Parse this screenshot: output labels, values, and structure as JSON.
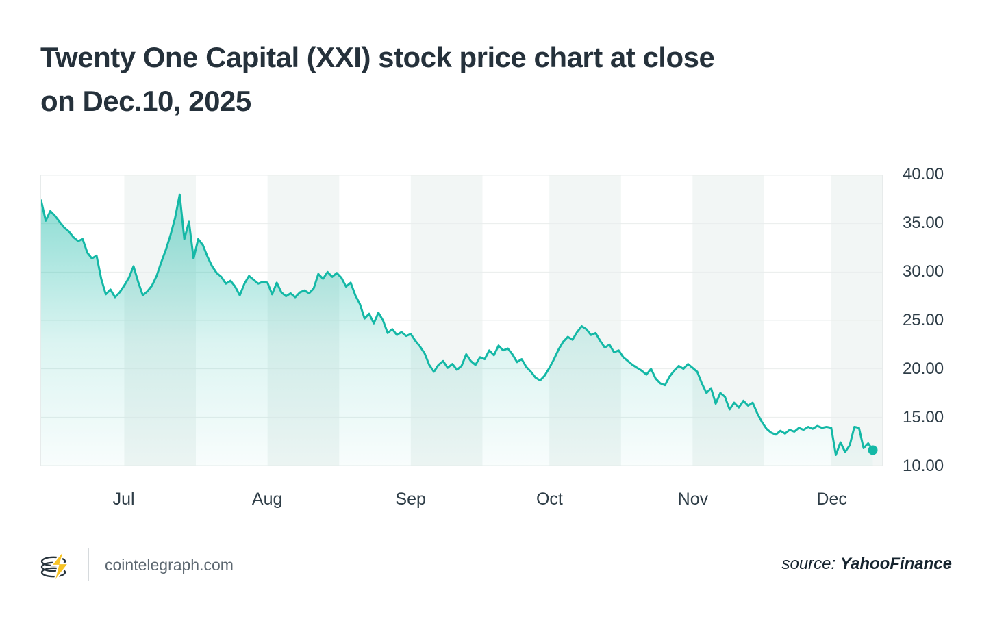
{
  "page": {
    "title_line1": "Twenty One Capital (XXI) stock price chart at close",
    "title_line2": "on Dec.10, 2025"
  },
  "footer": {
    "site": "cointelegraph.com",
    "source_label": "source:",
    "source_name": "YahooFinance",
    "logo_icon": "cointelegraph-coin-lightning-logo"
  },
  "chart_data": {
    "type": "area",
    "title": "Twenty One Capital (XXI) stock price at close on Dec. 10, 2025",
    "xlabel": "",
    "ylabel": "",
    "ylim": [
      10,
      40
    ],
    "y_ticks": [
      10,
      15,
      20,
      25,
      30,
      35,
      40
    ],
    "y_tick_labels": [
      "10.00",
      "15.00",
      "20.00",
      "25.00",
      "30.00",
      "35.00",
      "40.00"
    ],
    "x_months": [
      {
        "label": "Jul",
        "day": 18
      },
      {
        "label": "Aug",
        "day": 49
      },
      {
        "label": "Sep",
        "day": 80
      },
      {
        "label": "Oct",
        "day": 110
      },
      {
        "label": "Nov",
        "day": 141
      },
      {
        "label": "Dec",
        "day": 171
      }
    ],
    "domain_days": 182,
    "stripe_days": 15.5,
    "grid": true,
    "legend": "none",
    "line_color": "#14b8a6",
    "fill_color": "#14b8a6",
    "stripe_color": "#f2f6f5",
    "grid_color": "#e9edec",
    "last_point_marker": true,
    "last_close": 11.6,
    "points": [
      [
        0,
        37.4
      ],
      [
        1,
        35.3
      ],
      [
        2,
        36.3
      ],
      [
        3,
        35.8
      ],
      [
        4,
        35.2
      ],
      [
        5,
        34.6
      ],
      [
        6,
        34.2
      ],
      [
        7,
        33.6
      ],
      [
        8,
        33.2
      ],
      [
        9,
        33.4
      ],
      [
        10,
        32.0
      ],
      [
        11,
        31.4
      ],
      [
        12,
        31.7
      ],
      [
        13,
        29.3
      ],
      [
        14,
        27.7
      ],
      [
        15,
        28.2
      ],
      [
        16,
        27.4
      ],
      [
        17,
        27.9
      ],
      [
        18,
        28.6
      ],
      [
        19,
        29.4
      ],
      [
        20,
        30.6
      ],
      [
        21,
        29.0
      ],
      [
        22,
        27.6
      ],
      [
        23,
        28.0
      ],
      [
        24,
        28.6
      ],
      [
        25,
        29.6
      ],
      [
        26,
        31.0
      ],
      [
        27,
        32.3
      ],
      [
        28,
        33.8
      ],
      [
        29,
        35.6
      ],
      [
        30,
        38.0
      ],
      [
        31,
        33.4
      ],
      [
        32,
        35.2
      ],
      [
        33,
        31.4
      ],
      [
        34,
        33.4
      ],
      [
        35,
        32.8
      ],
      [
        36,
        31.6
      ],
      [
        37,
        30.6
      ],
      [
        38,
        29.9
      ],
      [
        39,
        29.5
      ],
      [
        40,
        28.8
      ],
      [
        41,
        29.1
      ],
      [
        42,
        28.5
      ],
      [
        43,
        27.6
      ],
      [
        44,
        28.8
      ],
      [
        45,
        29.6
      ],
      [
        46,
        29.2
      ],
      [
        47,
        28.8
      ],
      [
        48,
        29.0
      ],
      [
        49,
        28.9
      ],
      [
        50,
        27.7
      ],
      [
        51,
        28.9
      ],
      [
        52,
        27.9
      ],
      [
        53,
        27.5
      ],
      [
        54,
        27.8
      ],
      [
        55,
        27.4
      ],
      [
        56,
        27.9
      ],
      [
        57,
        28.1
      ],
      [
        58,
        27.8
      ],
      [
        59,
        28.3
      ],
      [
        60,
        29.8
      ],
      [
        61,
        29.3
      ],
      [
        62,
        30.0
      ],
      [
        63,
        29.5
      ],
      [
        64,
        29.9
      ],
      [
        65,
        29.4
      ],
      [
        66,
        28.5
      ],
      [
        67,
        28.9
      ],
      [
        68,
        27.6
      ],
      [
        69,
        26.7
      ],
      [
        70,
        25.2
      ],
      [
        71,
        25.7
      ],
      [
        72,
        24.7
      ],
      [
        73,
        25.8
      ],
      [
        74,
        25.0
      ],
      [
        75,
        23.7
      ],
      [
        76,
        24.1
      ],
      [
        77,
        23.5
      ],
      [
        78,
        23.8
      ],
      [
        79,
        23.4
      ],
      [
        80,
        23.6
      ],
      [
        81,
        22.9
      ],
      [
        82,
        22.3
      ],
      [
        83,
        21.6
      ],
      [
        84,
        20.4
      ],
      [
        85,
        19.7
      ],
      [
        86,
        20.4
      ],
      [
        87,
        20.8
      ],
      [
        88,
        20.1
      ],
      [
        89,
        20.5
      ],
      [
        90,
        19.9
      ],
      [
        91,
        20.3
      ],
      [
        92,
        21.5
      ],
      [
        93,
        20.8
      ],
      [
        94,
        20.4
      ],
      [
        95,
        21.2
      ],
      [
        96,
        21.0
      ],
      [
        97,
        21.9
      ],
      [
        98,
        21.4
      ],
      [
        99,
        22.4
      ],
      [
        100,
        21.9
      ],
      [
        101,
        22.1
      ],
      [
        102,
        21.5
      ],
      [
        103,
        20.7
      ],
      [
        104,
        21.0
      ],
      [
        105,
        20.2
      ],
      [
        106,
        19.7
      ],
      [
        107,
        19.1
      ],
      [
        108,
        18.8
      ],
      [
        109,
        19.3
      ],
      [
        110,
        20.1
      ],
      [
        111,
        21.0
      ],
      [
        112,
        22.0
      ],
      [
        113,
        22.8
      ],
      [
        114,
        23.3
      ],
      [
        115,
        23.0
      ],
      [
        116,
        23.8
      ],
      [
        117,
        24.4
      ],
      [
        118,
        24.1
      ],
      [
        119,
        23.5
      ],
      [
        120,
        23.7
      ],
      [
        121,
        22.9
      ],
      [
        122,
        22.2
      ],
      [
        123,
        22.5
      ],
      [
        124,
        21.7
      ],
      [
        125,
        21.9
      ],
      [
        126,
        21.2
      ],
      [
        127,
        20.8
      ],
      [
        128,
        20.4
      ],
      [
        129,
        20.1
      ],
      [
        130,
        19.8
      ],
      [
        131,
        19.4
      ],
      [
        132,
        20.0
      ],
      [
        133,
        19.0
      ],
      [
        134,
        18.5
      ],
      [
        135,
        18.3
      ],
      [
        136,
        19.2
      ],
      [
        137,
        19.8
      ],
      [
        138,
        20.3
      ],
      [
        139,
        20.0
      ],
      [
        140,
        20.5
      ],
      [
        141,
        20.1
      ],
      [
        142,
        19.7
      ],
      [
        143,
        18.5
      ],
      [
        144,
        17.5
      ],
      [
        145,
        18.0
      ],
      [
        146,
        16.4
      ],
      [
        147,
        17.5
      ],
      [
        148,
        17.1
      ],
      [
        149,
        15.8
      ],
      [
        150,
        16.5
      ],
      [
        151,
        16.0
      ],
      [
        152,
        16.7
      ],
      [
        153,
        16.2
      ],
      [
        154,
        16.5
      ],
      [
        155,
        15.4
      ],
      [
        156,
        14.5
      ],
      [
        157,
        13.8
      ],
      [
        158,
        13.4
      ],
      [
        159,
        13.2
      ],
      [
        160,
        13.6
      ],
      [
        161,
        13.3
      ],
      [
        162,
        13.7
      ],
      [
        163,
        13.5
      ],
      [
        164,
        13.9
      ],
      [
        165,
        13.7
      ],
      [
        166,
        14.0
      ],
      [
        167,
        13.8
      ],
      [
        168,
        14.1
      ],
      [
        169,
        13.9
      ],
      [
        170,
        14.0
      ],
      [
        171,
        13.9
      ],
      [
        172,
        11.1
      ],
      [
        173,
        12.4
      ],
      [
        174,
        11.4
      ],
      [
        175,
        12.1
      ],
      [
        176,
        14.0
      ],
      [
        177,
        13.9
      ],
      [
        178,
        11.8
      ],
      [
        179,
        12.3
      ],
      [
        180,
        11.6
      ]
    ]
  }
}
